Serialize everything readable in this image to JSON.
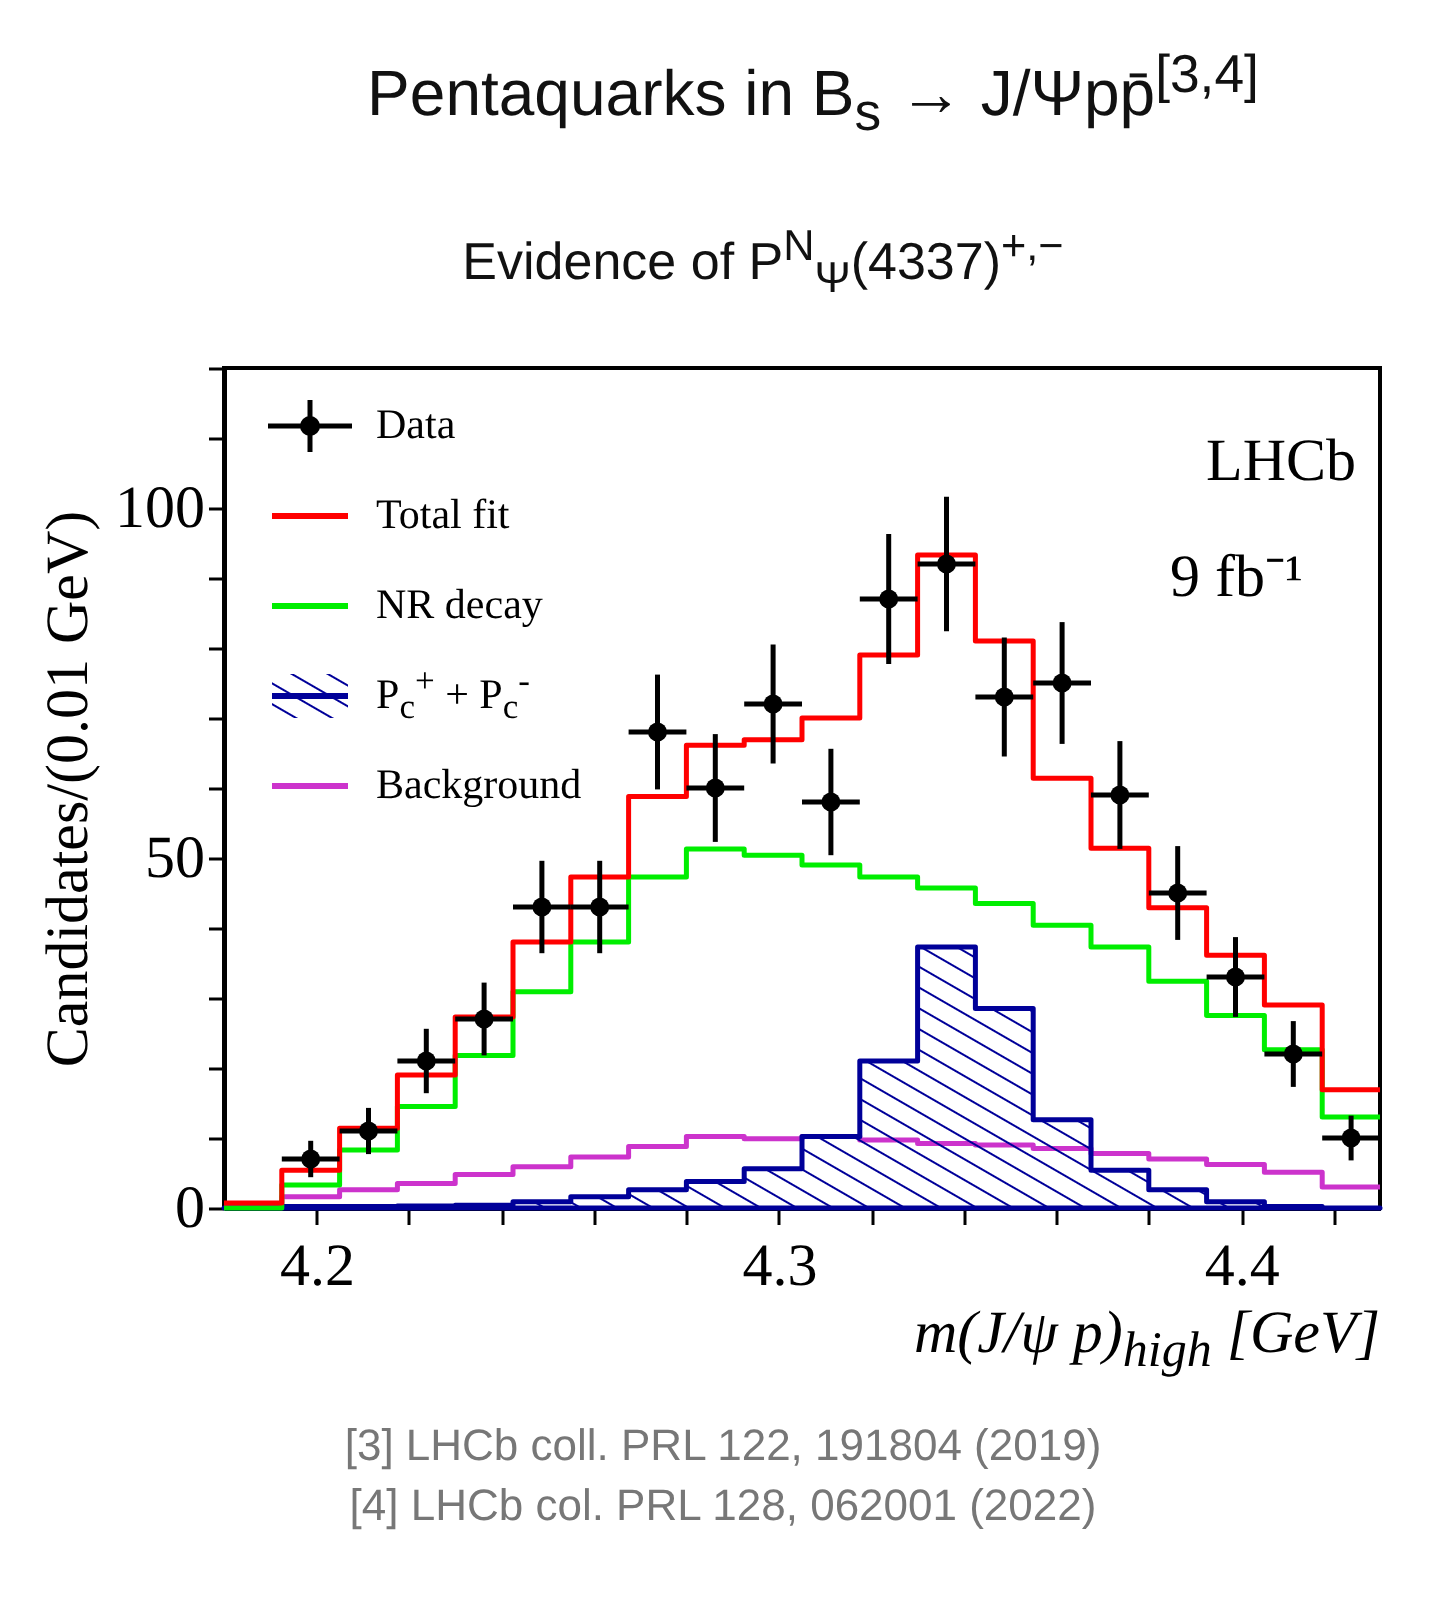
{
  "chart_data": {
    "type": "step",
    "title": "Pentaquarks in B$_{s}$ → J/Ψpp̄$^{[3,4]}$",
    "subtitle": "Evidence of P$^{N}$$_{Ψ}$(4337)$^{+,−}$",
    "xlabel": "m(J/ψ p)$_{high}$ [GeV]",
    "ylabel": "Candidates/(0.01 GeV)",
    "annotations": [
      "LHCb",
      "9 fb⁻¹",
      "[3] LHCb coll. PRL 122, 191804  (2019)",
      "[4] LHCb col. PRL 128, 062001 (2022)"
    ],
    "xlim": [
      4.18,
      4.43
    ],
    "xticks": [
      4.2,
      {
        "value": 4.22,
        "label": null
      },
      {
        "value": 4.24,
        "label": null
      },
      {
        "value": 4.26,
        "label": null
      },
      {
        "value": 4.28,
        "label": null
      },
      4.3,
      {
        "value": 4.32,
        "label": null
      },
      {
        "value": 4.34,
        "label": null
      },
      {
        "value": 4.36,
        "label": null
      },
      {
        "value": 4.38,
        "label": null
      },
      4.4,
      {
        "value": 4.42,
        "label": null
      }
    ],
    "ylim": [
      0,
      120
    ],
    "yticks": [
      0,
      {
        "value": 10,
        "label": null
      },
      {
        "value": 20,
        "label": null
      },
      {
        "value": 30,
        "label": null
      },
      {
        "value": 40,
        "label": null
      },
      50,
      {
        "value": 60,
        "label": null
      },
      {
        "value": 70,
        "label": null
      },
      {
        "value": 80,
        "label": null
      },
      {
        "value": 90,
        "label": null
      },
      100,
      {
        "value": 110,
        "label": null
      },
      {
        "value": 120,
        "label": null
      }
    ],
    "legend": "top left",
    "grid": false,
    "series": [
      {
        "name": "Data",
        "type": "scatter",
        "marker": "circle",
        "color": "#000000",
        "x": [
          4.19875,
          4.21125,
          4.22375,
          4.23625,
          4.24875,
          4.26125,
          4.27375,
          4.28625,
          4.29875,
          4.31125,
          4.32375,
          4.33625,
          4.34875,
          4.36125,
          4.37375,
          4.38625,
          4.39875,
          4.41125,
          4.42375
        ],
        "values": [
          7,
          11,
          21,
          27,
          43,
          43,
          68,
          60,
          72,
          58,
          87,
          92,
          73,
          75,
          59,
          45,
          33,
          22,
          10
        ],
        "errors": [
          2.6,
          3.3,
          4.6,
          5.2,
          6.6,
          6.6,
          8.2,
          7.7,
          8.5,
          7.6,
          9.3,
          9.6,
          8.5,
          8.7,
          7.7,
          6.7,
          5.7,
          4.7,
          3.2
        ],
        "xerrors": [
          0.00625,
          0.00625,
          0.00625,
          0.00625,
          0.00625,
          0.00625,
          0.00625,
          0.00625,
          0.00625,
          0.00625,
          0.00625,
          0.00625,
          0.00625,
          0.00625,
          0.00625,
          0.00625,
          0.00625,
          0.00625,
          0.00625
        ]
      },
      {
        "name": "Total fit",
        "color": "#ff0000",
        "x": [
          4.18,
          4.1925,
          4.205,
          4.2175,
          4.23,
          4.2425,
          4.255,
          4.2675,
          4.28,
          4.2925,
          4.305,
          4.3175,
          4.33,
          4.3425,
          4.355,
          4.3675,
          4.38,
          4.3925,
          4.405,
          4.4175,
          4.43
        ],
        "values": [
          0.7,
          5.4,
          11.4,
          19,
          27.3,
          38,
          47.3,
          58.8,
          66.1,
          66.9,
          70,
          79,
          93.3,
          81,
          61.4,
          51.4,
          42.9,
          36.1,
          29,
          16.9,
          16.9
        ]
      },
      {
        "name": "NR decay",
        "color": "#00ee00",
        "x": [
          4.18,
          4.1925,
          4.205,
          4.2175,
          4.23,
          4.2425,
          4.255,
          4.2675,
          4.28,
          4.2925,
          4.305,
          4.3175,
          4.33,
          4.3425,
          4.355,
          4.3675,
          4.38,
          4.3925,
          4.405,
          4.4175,
          4.43
        ],
        "values": [
          0,
          3.3,
          8.3,
          14.5,
          21.8,
          30.9,
          38,
          47.3,
          51.3,
          50.4,
          49,
          47.3,
          45.7,
          43.5,
          40.4,
          37.3,
          32.4,
          27.5,
          22.6,
          13,
          13
        ]
      },
      {
        "name": "P$_{c}$$^{+}$ + P$_{c}$$^{-}$",
        "type": "area",
        "color": "#000099",
        "x": [
          4.18,
          4.1925,
          4.205,
          4.2175,
          4.23,
          4.2425,
          4.255,
          4.2675,
          4.28,
          4.2925,
          4.305,
          4.3175,
          4.33,
          4.3425,
          4.355,
          4.3675,
          4.38,
          4.3925,
          4.405,
          4.4175,
          4.43
        ],
        "values": [
          0,
          0.2,
          0.2,
          0.3,
          0.4,
          0.9,
          1.6,
          2.6,
          3.8,
          5.6,
          10.2,
          21,
          37.3,
          28.5,
          12.6,
          5.4,
          2.6,
          0.9,
          0.2,
          0,
          0
        ]
      },
      {
        "name": "Background",
        "color": "#cc33cc",
        "x": [
          4.18,
          4.1925,
          4.205,
          4.2175,
          4.23,
          4.2425,
          4.255,
          4.2675,
          4.28,
          4.2925,
          4.305,
          4.3175,
          4.33,
          4.3425,
          4.355,
          4.3675,
          4.38,
          4.3925,
          4.405,
          4.4175,
          4.43
        ],
        "values": [
          0.4,
          1.6,
          2.6,
          3.5,
          4.8,
          5.9,
          7.3,
          8.8,
          10.2,
          9.9,
          10.2,
          9.7,
          9.2,
          9,
          8.5,
          7.8,
          7,
          6.2,
          5.1,
          3,
          3
        ]
      }
    ]
  }
}
